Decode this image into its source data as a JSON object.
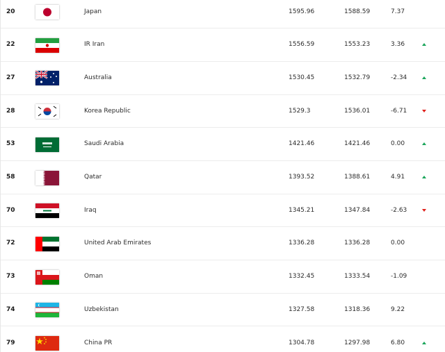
{
  "table": {
    "rows": [
      {
        "rank": "20",
        "country": "Japan",
        "total_points": "1595.96",
        "previous_points": "1588.59",
        "change": "7.37",
        "trend": null
      },
      {
        "rank": "22",
        "country": "IR Iran",
        "total_points": "1556.59",
        "previous_points": "1553.23",
        "change": "3.36",
        "trend": "up"
      },
      {
        "rank": "27",
        "country": "Australia",
        "total_points": "1530.45",
        "previous_points": "1532.79",
        "change": "-2.34",
        "trend": "up"
      },
      {
        "rank": "28",
        "country": "Korea Republic",
        "total_points": "1529.3",
        "previous_points": "1536.01",
        "change": "-6.71",
        "trend": "down"
      },
      {
        "rank": "53",
        "country": "Saudi Arabia",
        "total_points": "1421.46",
        "previous_points": "1421.46",
        "change": "0.00",
        "trend": "up"
      },
      {
        "rank": "58",
        "country": "Qatar",
        "total_points": "1393.52",
        "previous_points": "1388.61",
        "change": "4.91",
        "trend": "up"
      },
      {
        "rank": "70",
        "country": "Iraq",
        "total_points": "1345.21",
        "previous_points": "1347.84",
        "change": "-2.63",
        "trend": "down"
      },
      {
        "rank": "72",
        "country": "United Arab Emirates",
        "total_points": "1336.28",
        "previous_points": "1336.28",
        "change": "0.00",
        "trend": null
      },
      {
        "rank": "73",
        "country": "Oman",
        "total_points": "1332.45",
        "previous_points": "1333.54",
        "change": "-1.09",
        "trend": null
      },
      {
        "rank": "74",
        "country": "Uzbekistan",
        "total_points": "1327.58",
        "previous_points": "1318.36",
        "change": "9.22",
        "trend": null
      },
      {
        "rank": "79",
        "country": "China PR",
        "total_points": "1304.78",
        "previous_points": "1297.98",
        "change": "6.80",
        "trend": "up"
      }
    ]
  }
}
